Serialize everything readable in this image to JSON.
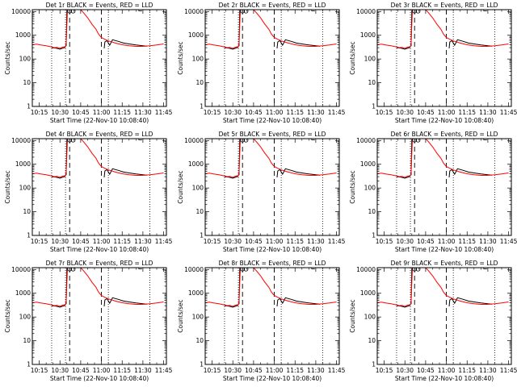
{
  "chart_data": {
    "type": "line",
    "panels": [
      {
        "title": "Det 1r BLACK = Events, RED = LLD"
      },
      {
        "title": "Det 2r BLACK = Events, RED = LLD"
      },
      {
        "title": "Det 3r BLACK = Events, RED = LLD"
      },
      {
        "title": "Det 4r BLACK = Events, RED = LLD"
      },
      {
        "title": "Det 5r BLACK = Events, RED = LLD"
      },
      {
        "title": "Det 6r BLACK = Events, RED = LLD"
      },
      {
        "title": "Det 7r BLACK = Events, RED = LLD"
      },
      {
        "title": "Det 8r BLACK = Events, RED = LLD"
      },
      {
        "title": "Det 9r BLACK = Events, RED = LLD"
      }
    ],
    "xlabel": "Start Time (22-Nov-10 10:08:40)",
    "ylabel": "Counts/sec",
    "x_ticks": [
      "10:15",
      "10:30",
      "10:45",
      "11:00",
      "11:15",
      "11:30",
      "11:45"
    ],
    "x_tick_minutes": [
      15,
      30,
      45,
      60,
      75,
      90,
      105
    ],
    "xlim_minutes_after_10h": [
      10,
      107
    ],
    "y_ticks": [
      "1",
      "10",
      "100",
      "1000",
      "10000"
    ],
    "ylim": [
      1,
      12000
    ],
    "yscale": "log",
    "vlines_dotted_minutes": [
      24,
      34,
      65,
      95
    ],
    "vlines_dashed_minutes": [
      37,
      60
    ],
    "series": [
      {
        "name": "Events",
        "color": "#000000",
        "segments": [
          {
            "x": [
              24,
              27,
              30,
              33,
              34
            ],
            "y": [
              300,
              290,
              260,
              300,
              310
            ]
          },
          {
            "x": [
              34.5,
              35
            ],
            "y": [
              350,
              11000
            ]
          },
          {
            "x": [
              62,
              62.5,
              64,
              66,
              68,
              72,
              76,
              80,
              85,
              90,
              93
            ],
            "y": [
              280,
              520,
              600,
              380,
              650,
              560,
              470,
              430,
              390,
              360,
              350
            ]
          }
        ]
      },
      {
        "name": "LLD",
        "color": "#ff0000",
        "segments": [
          {
            "x": [
              10,
              13,
              16,
              20,
              24,
              26,
              28,
              30,
              32,
              34,
              34.5,
              35,
              35.5
            ],
            "y": [
              400,
              420,
              390,
              360,
              320,
              300,
              310,
              280,
              320,
              330,
              500,
              3000,
              12000
            ]
          },
          {
            "x": [
              45,
              47,
              50,
              53,
              56,
              58,
              60,
              62,
              65,
              70,
              75,
              80,
              85,
              90,
              95,
              100,
              105
            ],
            "y": [
              12000,
              9000,
              5500,
              3000,
              1800,
              1100,
              800,
              700,
              580,
              470,
              400,
              360,
              340,
              340,
              360,
              390,
              430
            ]
          }
        ]
      }
    ],
    "markers_circle": [
      {
        "x": 37,
        "y": 10500
      },
      {
        "x": 39.5,
        "y": 10500
      }
    ],
    "marker_bracket": {
      "x": 87,
      "y": 10800
    }
  }
}
